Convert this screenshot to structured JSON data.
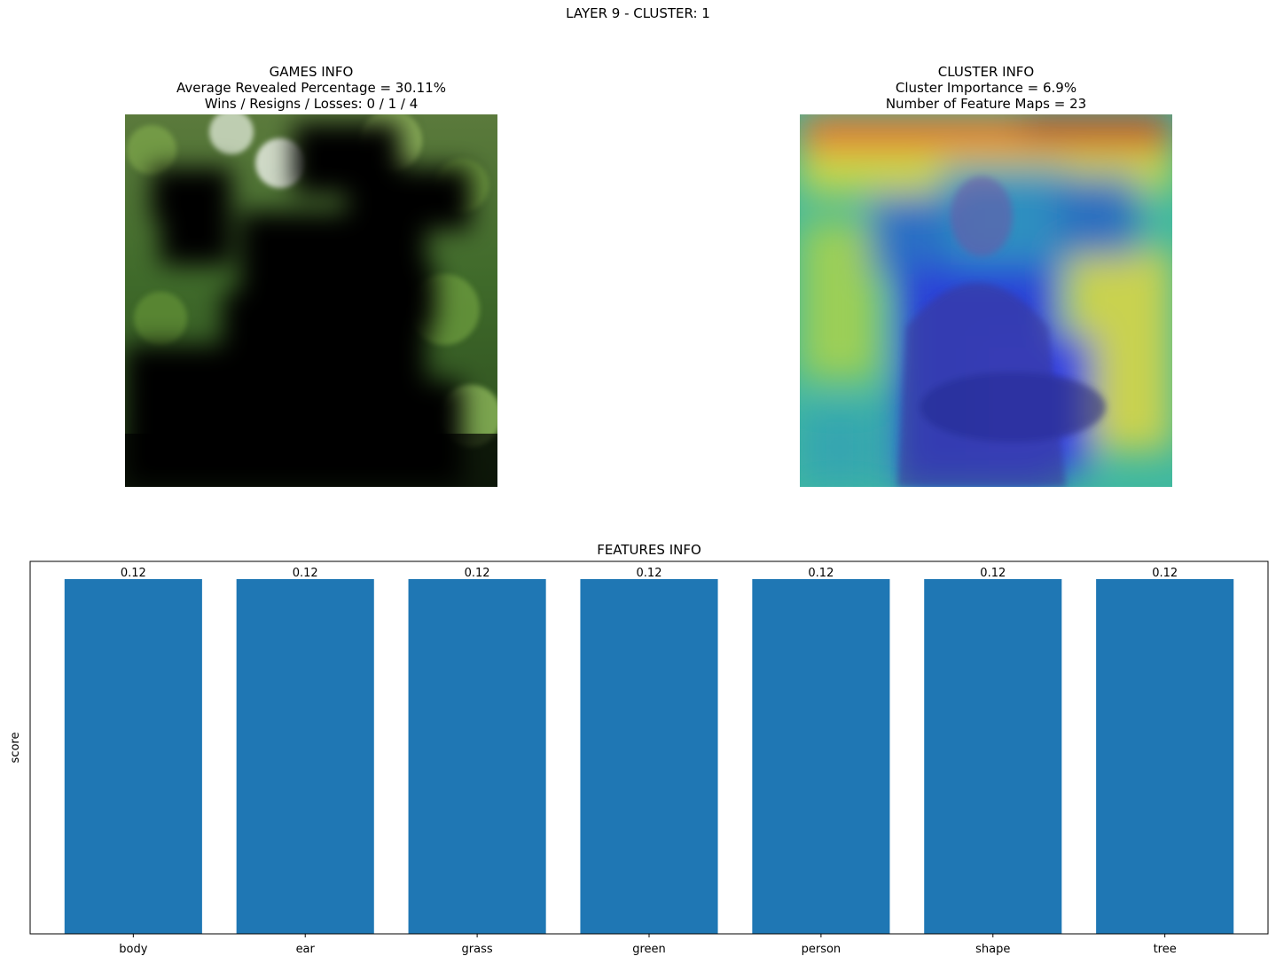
{
  "figure": {
    "suptitle": "LAYER 9 - CLUSTER: 1"
  },
  "games_info": {
    "title": "GAMES INFO",
    "line1": "Average Revealed Percentage = 30.11%",
    "line2": "Wins / Resigns / Losses: 0 / 1 / 4"
  },
  "cluster_info": {
    "title": "CLUSTER INFO",
    "line1": "Cluster Importance = 6.9%",
    "line2": "Number of Feature Maps = 23"
  },
  "colors": {
    "bar": "#1f77b4",
    "axis": "#000000"
  },
  "chart_data": {
    "type": "bar",
    "title": "FEATURES INFO",
    "xlabel": "",
    "ylabel": "score",
    "categories": [
      "body",
      "ear",
      "grass",
      "green",
      "person",
      "shape",
      "tree"
    ],
    "values": [
      0.12,
      0.12,
      0.12,
      0.12,
      0.12,
      0.12,
      0.12
    ],
    "data_labels": [
      "0.12",
      "0.12",
      "0.12",
      "0.12",
      "0.12",
      "0.12",
      "0.12"
    ],
    "ylim": [
      0,
      0.126
    ],
    "y_ticks_visible": false,
    "grid": false
  }
}
